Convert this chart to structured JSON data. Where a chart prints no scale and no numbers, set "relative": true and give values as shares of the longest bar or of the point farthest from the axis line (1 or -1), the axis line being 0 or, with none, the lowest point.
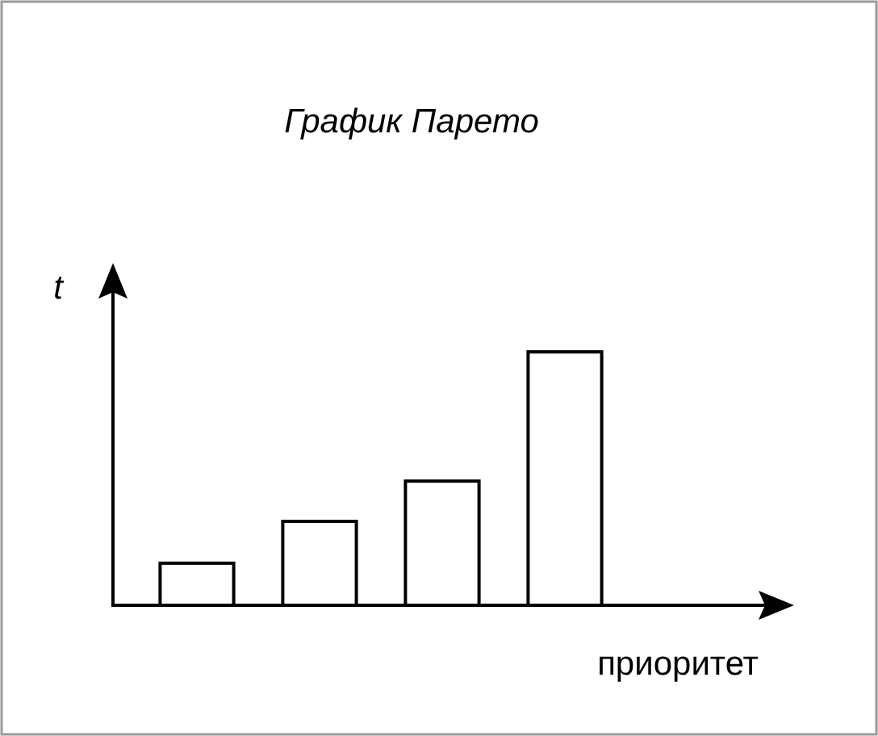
{
  "chart_data": {
    "type": "bar",
    "title": "График Парето",
    "xlabel": "приоритет",
    "ylabel": "t",
    "relative": true,
    "categories": [
      null,
      null,
      null,
      null
    ],
    "values": [
      0.166,
      0.331,
      0.49,
      1
    ],
    "color": "#ffffff"
  }
}
